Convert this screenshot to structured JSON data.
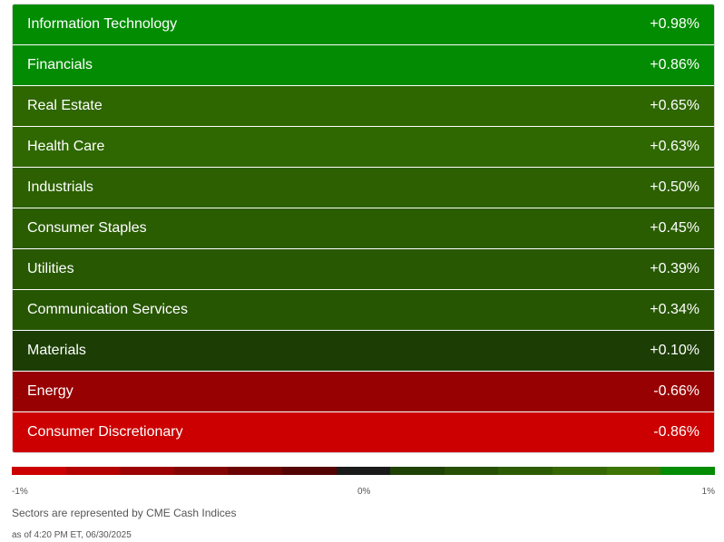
{
  "sectors": [
    {
      "name": "Information Technology",
      "change": "+0.98%",
      "color": "#018c01"
    },
    {
      "name": "Financials",
      "change": "+0.86%",
      "color": "#038b03"
    },
    {
      "name": "Real Estate",
      "change": "+0.65%",
      "color": "#2e6600"
    },
    {
      "name": "Health Care",
      "change": "+0.63%",
      "color": "#2f6800"
    },
    {
      "name": "Industrials",
      "change": "+0.50%",
      "color": "#2c6000"
    },
    {
      "name": "Consumer Staples",
      "change": "+0.45%",
      "color": "#2a5c01"
    },
    {
      "name": "Utilities",
      "change": "+0.39%",
      "color": "#285902"
    },
    {
      "name": "Communication Services",
      "change": "+0.34%",
      "color": "#275603"
    },
    {
      "name": "Materials",
      "change": "+0.10%",
      "color": "#1c3e05"
    },
    {
      "name": "Energy",
      "change": "-0.66%",
      "color": "#980101"
    },
    {
      "name": "Consumer Discretionary",
      "change": "-0.86%",
      "color": "#cc0000"
    }
  ],
  "scale": {
    "min_label": "-1%",
    "mid_label": "0%",
    "max_label": "1%",
    "colors": [
      "#cc0000",
      "#b40101",
      "#9c0202",
      "#840303",
      "#6c0303",
      "#540404",
      "#1a1a1a",
      "#1f4104",
      "#264e04",
      "#2d5b03",
      "#356802",
      "#3d7501",
      "#018c01"
    ]
  },
  "footnote": "Sectors are represented by CME Cash Indices",
  "timestamp": "as of 4:20 PM ET, 06/30/2025"
}
